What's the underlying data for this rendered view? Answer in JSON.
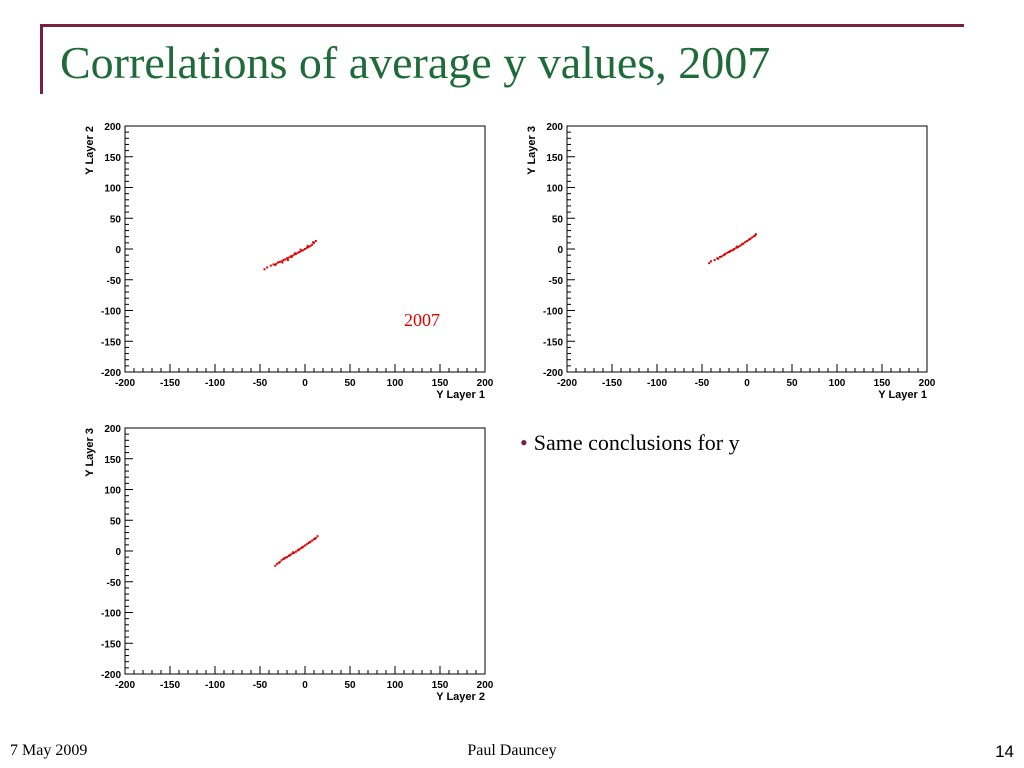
{
  "slide": {
    "title": "Correlations of average y values, 2007",
    "bullet": "Same conclusions for y",
    "footer_date": "7 May 2009",
    "footer_author": "Paul Dauncey",
    "page_number": "14",
    "colors": {
      "title": "#1f6b3a",
      "frame": "#7a1f3d",
      "marker": "#e00000"
    }
  },
  "chart_data": [
    {
      "type": "scatter",
      "xlabel": "Y Layer 1",
      "ylabel": "Y Layer 2",
      "xlim": [
        -200,
        200
      ],
      "ylim": [
        -200,
        200
      ],
      "xticks": [
        "-200",
        "-150",
        "-100",
        "-50",
        "0",
        "50",
        "100",
        "150",
        "200"
      ],
      "yticks": [
        "200",
        "150",
        "100",
        "50",
        "0",
        "-50",
        "-100",
        "-150",
        "-200"
      ],
      "annotation": "2007",
      "points": [
        [
          -45,
          -33
        ],
        [
          -42,
          -30
        ],
        [
          -38,
          -27
        ],
        [
          -35,
          -25
        ],
        [
          -32,
          -24
        ],
        [
          -30,
          -22
        ],
        [
          -28,
          -21
        ],
        [
          -26,
          -20
        ],
        [
          -24,
          -18
        ],
        [
          -22,
          -17
        ],
        [
          -20,
          -15
        ],
        [
          -18,
          -14
        ],
        [
          -16,
          -12
        ],
        [
          -14,
          -11
        ],
        [
          -12,
          -9
        ],
        [
          -10,
          -8
        ],
        [
          -8,
          -6
        ],
        [
          -6,
          -5
        ],
        [
          -4,
          -3
        ],
        [
          -2,
          -2
        ],
        [
          0,
          0
        ],
        [
          2,
          2
        ],
        [
          4,
          3
        ],
        [
          6,
          5
        ],
        [
          8,
          7
        ],
        [
          10,
          10
        ],
        [
          12,
          13
        ],
        [
          -25,
          -22
        ],
        [
          -15,
          -13
        ],
        [
          -5,
          -1
        ],
        [
          3,
          5
        ],
        [
          9,
          11
        ],
        [
          -33,
          -26
        ],
        [
          -19,
          -18
        ],
        [
          -11,
          -7
        ]
      ]
    },
    {
      "type": "scatter",
      "xlabel": "Y Layer 1",
      "ylabel": "Y Layer 3",
      "xlim": [
        -200,
        200
      ],
      "ylim": [
        -200,
        200
      ],
      "xticks": [
        "-200",
        "-150",
        "-100",
        "-50",
        "0",
        "50",
        "100",
        "150",
        "200"
      ],
      "yticks": [
        "200",
        "150",
        "100",
        "50",
        "0",
        "-50",
        "-100",
        "-150",
        "-200"
      ],
      "points": [
        [
          -42,
          -23
        ],
        [
          -40,
          -20
        ],
        [
          -36,
          -18
        ],
        [
          -33,
          -15
        ],
        [
          -30,
          -13
        ],
        [
          -28,
          -12
        ],
        [
          -26,
          -10
        ],
        [
          -24,
          -8
        ],
        [
          -22,
          -6
        ],
        [
          -20,
          -5
        ],
        [
          -18,
          -3
        ],
        [
          -16,
          -2
        ],
        [
          -14,
          0
        ],
        [
          -12,
          2
        ],
        [
          -10,
          3
        ],
        [
          -8,
          5
        ],
        [
          -6,
          7
        ],
        [
          -4,
          9
        ],
        [
          -2,
          11
        ],
        [
          0,
          13
        ],
        [
          2,
          15
        ],
        [
          4,
          17
        ],
        [
          6,
          19
        ],
        [
          8,
          21
        ],
        [
          10,
          24
        ],
        [
          -25,
          -9
        ],
        [
          -15,
          -1
        ],
        [
          -5,
          8
        ],
        [
          3,
          16
        ],
        [
          9,
          22
        ],
        [
          -32,
          -16
        ],
        [
          -19,
          -4
        ],
        [
          -11,
          4
        ]
      ]
    },
    {
      "type": "scatter",
      "xlabel": "Y Layer 2",
      "ylabel": "Y Layer 3",
      "xlim": [
        -200,
        200
      ],
      "ylim": [
        -200,
        200
      ],
      "xticks": [
        "-200",
        "-150",
        "-100",
        "-50",
        "0",
        "50",
        "100",
        "150",
        "200"
      ],
      "yticks": [
        "200",
        "150",
        "100",
        "50",
        "0",
        "-50",
        "-100",
        "-150",
        "-200"
      ],
      "points": [
        [
          -33,
          -24
        ],
        [
          -31,
          -21
        ],
        [
          -28,
          -18
        ],
        [
          -26,
          -15
        ],
        [
          -24,
          -13
        ],
        [
          -22,
          -11
        ],
        [
          -20,
          -10
        ],
        [
          -18,
          -8
        ],
        [
          -16,
          -6
        ],
        [
          -14,
          -4
        ],
        [
          -12,
          -3
        ],
        [
          -10,
          -1
        ],
        [
          -8,
          1
        ],
        [
          -6,
          3
        ],
        [
          -4,
          5
        ],
        [
          -2,
          7
        ],
        [
          0,
          9
        ],
        [
          2,
          11
        ],
        [
          4,
          13
        ],
        [
          6,
          15
        ],
        [
          8,
          17
        ],
        [
          10,
          19
        ],
        [
          12,
          21
        ],
        [
          14,
          24
        ],
        [
          -23,
          -12
        ],
        [
          -13,
          -2
        ],
        [
          -3,
          6
        ],
        [
          5,
          14
        ],
        [
          11,
          20
        ],
        [
          -29,
          -19
        ],
        [
          -17,
          -7
        ],
        [
          -7,
          2
        ]
      ]
    }
  ]
}
